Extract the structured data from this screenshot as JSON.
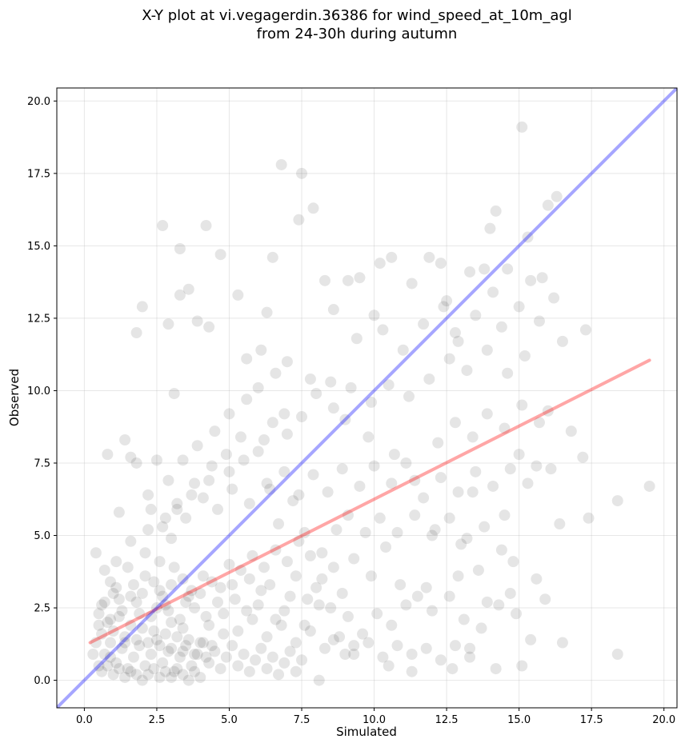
{
  "chart_data": {
    "type": "scatter",
    "title_line1": "X-Y plot at vi.vegagerdin.36386 for wind_speed_at_10m_agl",
    "title_line2": "from 24-30h during autumn",
    "xlabel": "Simulated",
    "ylabel": "Observed",
    "xlim": [
      -0.95,
      20.45
    ],
    "ylim": [
      -0.95,
      20.45
    ],
    "xticks": [
      0.0,
      2.5,
      5.0,
      7.5,
      10.0,
      12.5,
      15.0,
      17.5,
      20.0
    ],
    "yticks": [
      0.0,
      2.5,
      5.0,
      7.5,
      10.0,
      12.5,
      15.0,
      17.5,
      20.0
    ],
    "xtick_labels": [
      "0.0",
      "2.5",
      "5.0",
      "7.5",
      "10.0",
      "12.5",
      "15.0",
      "17.5",
      "20.0"
    ],
    "ytick_labels": [
      "0.0",
      "2.5",
      "5.0",
      "7.5",
      "10.0",
      "12.5",
      "15.0",
      "17.5",
      "20.0"
    ],
    "grid": true,
    "point_color": "#000000",
    "point_opacity": 0.1,
    "identity_line": {
      "x": [
        -0.95,
        20.45
      ],
      "y": [
        -0.95,
        20.45
      ],
      "color": "#0000ff",
      "opacity": 0.35
    },
    "fit_line": {
      "x": [
        0.2,
        19.5
      ],
      "y": [
        1.3,
        11.05
      ],
      "color": "#ff0000",
      "opacity": 0.35
    },
    "points": [
      [
        0.4,
        4.4
      ],
      [
        0.7,
        3.8
      ],
      [
        0.8,
        7.8
      ],
      [
        1.2,
        5.8
      ],
      [
        1.4,
        8.3
      ],
      [
        1.6,
        7.7
      ],
      [
        1.8,
        7.5
      ],
      [
        1.8,
        12.0
      ],
      [
        2.0,
        12.9
      ],
      [
        2.2,
        6.4
      ],
      [
        2.5,
        7.6
      ],
      [
        2.7,
        15.7
      ],
      [
        2.9,
        12.3
      ],
      [
        3.1,
        9.9
      ],
      [
        3.3,
        14.9
      ],
      [
        3.3,
        13.3
      ],
      [
        3.6,
        13.5
      ],
      [
        3.9,
        12.4
      ],
      [
        4.2,
        15.7
      ],
      [
        4.3,
        12.2
      ],
      [
        4.7,
        14.7
      ],
      [
        5.3,
        13.3
      ],
      [
        5.6,
        11.1
      ],
      [
        6.1,
        11.4
      ],
      [
        6.3,
        12.7
      ],
      [
        6.5,
        14.6
      ],
      [
        6.8,
        17.8
      ],
      [
        7.5,
        17.5
      ],
      [
        7.4,
        15.9
      ],
      [
        7.9,
        16.3
      ],
      [
        8.3,
        13.8
      ],
      [
        8.6,
        12.8
      ],
      [
        9.1,
        13.8
      ],
      [
        9.5,
        13.9
      ],
      [
        10.0,
        12.6
      ],
      [
        10.2,
        14.4
      ],
      [
        10.6,
        14.6
      ],
      [
        11.3,
        13.7
      ],
      [
        11.9,
        14.6
      ],
      [
        12.3,
        14.4
      ],
      [
        12.5,
        13.1
      ],
      [
        12.9,
        11.7
      ],
      [
        13.3,
        14.1
      ],
      [
        13.8,
        14.2
      ],
      [
        14.0,
        15.6
      ],
      [
        14.2,
        16.2
      ],
      [
        14.6,
        14.2
      ],
      [
        15.1,
        19.1
      ],
      [
        15.3,
        15.3
      ],
      [
        15.8,
        13.9
      ],
      [
        16.0,
        16.4
      ],
      [
        16.3,
        16.7
      ],
      [
        16.5,
        11.7
      ],
      [
        17.3,
        12.1
      ],
      [
        16.8,
        8.6
      ],
      [
        17.2,
        7.7
      ],
      [
        17.4,
        5.6
      ],
      [
        18.4,
        6.2
      ],
      [
        19.5,
        6.7
      ],
      [
        18.4,
        0.9
      ],
      [
        16.5,
        1.3
      ],
      [
        15.1,
        0.5
      ],
      [
        14.2,
        0.4
      ],
      [
        13.3,
        1.1
      ],
      [
        12.7,
        0.4
      ],
      [
        11.3,
        0.3
      ],
      [
        10.5,
        0.5
      ],
      [
        9.3,
        1.2
      ],
      [
        9.0,
        0.9
      ],
      [
        8.1,
        0.0
      ],
      [
        13.0,
        4.7
      ],
      [
        13.4,
        6.5
      ],
      [
        14.5,
        5.7
      ],
      [
        15.0,
        7.8
      ],
      [
        15.6,
        7.4
      ],
      [
        16.0,
        9.3
      ],
      [
        16.4,
        5.4
      ],
      [
        14.8,
        4.1
      ],
      [
        13.6,
        3.8
      ],
      [
        12.1,
        5.2
      ],
      [
        11.4,
        6.9
      ],
      [
        10.7,
        7.8
      ],
      [
        9.8,
        8.4
      ],
      [
        9.0,
        9.0
      ],
      [
        8.5,
        10.3
      ],
      [
        7.8,
        10.4
      ],
      [
        6.9,
        9.2
      ],
      [
        6.2,
        8.3
      ],
      [
        5.5,
        7.6
      ],
      [
        5.0,
        7.2
      ],
      [
        4.4,
        7.4
      ],
      [
        3.8,
        6.8
      ],
      [
        3.2,
        6.1
      ],
      [
        2.8,
        5.6
      ],
      [
        2.2,
        5.2
      ],
      [
        1.6,
        4.8
      ],
      [
        1.1,
        4.1
      ],
      [
        0.9,
        3.4
      ],
      [
        1.5,
        3.9
      ],
      [
        2.1,
        4.4
      ],
      [
        2.6,
        4.1
      ],
      [
        3.0,
        4.9
      ],
      [
        3.5,
        5.6
      ],
      [
        4.1,
        6.3
      ],
      [
        4.6,
        5.9
      ],
      [
        5.1,
        6.6
      ],
      [
        5.7,
        6.1
      ],
      [
        6.3,
        6.8
      ],
      [
        6.7,
        5.4
      ],
      [
        7.2,
        6.2
      ],
      [
        7.6,
        5.1
      ],
      [
        8.2,
        4.4
      ],
      [
        8.7,
        5.2
      ],
      [
        9.3,
        4.2
      ],
      [
        9.9,
        3.6
      ],
      [
        10.4,
        4.6
      ],
      [
        10.9,
        3.3
      ],
      [
        11.5,
        2.9
      ],
      [
        12.0,
        2.4
      ],
      [
        12.6,
        2.9
      ],
      [
        13.1,
        2.1
      ],
      [
        13.7,
        1.8
      ],
      [
        14.3,
        2.6
      ],
      [
        14.9,
        2.3
      ],
      [
        15.4,
        1.4
      ],
      [
        15.9,
        2.8
      ],
      [
        15.6,
        3.5
      ],
      [
        14.7,
        3.0
      ],
      [
        13.9,
        2.7
      ],
      [
        12.9,
        3.6
      ],
      [
        11.8,
        3.2
      ],
      [
        11.1,
        2.6
      ],
      [
        10.6,
        1.9
      ],
      [
        10.1,
        2.3
      ],
      [
        9.6,
        1.6
      ],
      [
        9.1,
        2.2
      ],
      [
        8.6,
        1.4
      ],
      [
        8.1,
        2.6
      ],
      [
        7.6,
        1.9
      ],
      [
        7.1,
        2.9
      ],
      [
        6.6,
        2.1
      ],
      [
        6.1,
        3.1
      ],
      [
        5.6,
        2.4
      ],
      [
        5.1,
        3.3
      ],
      [
        4.6,
        2.7
      ],
      [
        4.1,
        3.6
      ],
      [
        3.6,
        2.9
      ],
      [
        3.1,
        3.9
      ],
      [
        2.6,
        3.1
      ],
      [
        2.1,
        3.6
      ],
      [
        1.6,
        2.9
      ],
      [
        1.1,
        3.2
      ],
      [
        0.6,
        2.6
      ],
      [
        0.5,
        1.9
      ],
      [
        0.9,
        2.1
      ],
      [
        1.3,
        2.4
      ],
      [
        1.8,
        2.7
      ],
      [
        2.3,
        2.2
      ],
      [
        2.8,
        2.6
      ],
      [
        3.3,
        2.1
      ],
      [
        3.8,
        2.5
      ],
      [
        4.3,
        1.9
      ],
      [
        4.8,
        2.3
      ],
      [
        5.3,
        1.7
      ],
      [
        5.8,
        2.1
      ],
      [
        6.3,
        1.5
      ],
      [
        6.8,
        1.9
      ],
      [
        7.3,
        1.3
      ],
      [
        7.8,
        1.7
      ],
      [
        8.3,
        1.1
      ],
      [
        8.8,
        1.5
      ],
      [
        9.3,
        0.9
      ],
      [
        9.8,
        1.3
      ],
      [
        10.3,
        0.8
      ],
      [
        10.8,
        1.2
      ],
      [
        11.3,
        0.9
      ],
      [
        11.8,
        1.1
      ],
      [
        12.3,
        0.7
      ],
      [
        12.8,
        1.2
      ],
      [
        13.3,
        0.8
      ],
      [
        0.5,
        0.5
      ],
      [
        0.7,
        0.9
      ],
      [
        0.9,
        1.3
      ],
      [
        1.1,
        0.6
      ],
      [
        1.3,
        1.1
      ],
      [
        1.5,
        0.4
      ],
      [
        1.7,
        0.8
      ],
      [
        1.9,
        1.2
      ],
      [
        2.1,
        0.5
      ],
      [
        2.3,
        0.9
      ],
      [
        2.5,
        1.4
      ],
      [
        2.7,
        0.6
      ],
      [
        2.9,
        1.0
      ],
      [
        3.1,
        0.3
      ],
      [
        3.3,
        0.8
      ],
      [
        3.5,
        1.2
      ],
      [
        3.7,
        0.5
      ],
      [
        3.9,
        0.9
      ],
      [
        4.1,
        1.3
      ],
      [
        4.3,
        0.6
      ],
      [
        4.5,
        1.0
      ],
      [
        4.7,
        0.4
      ],
      [
        4.9,
        0.8
      ],
      [
        5.1,
        1.2
      ],
      [
        5.3,
        0.5
      ],
      [
        5.5,
        0.9
      ],
      [
        5.7,
        0.3
      ],
      [
        5.9,
        0.7
      ],
      [
        6.1,
        1.1
      ],
      [
        6.3,
        0.4
      ],
      [
        6.5,
        0.8
      ],
      [
        6.7,
        0.2
      ],
      [
        6.9,
        0.6
      ],
      [
        7.1,
        1.0
      ],
      [
        7.3,
        0.3
      ],
      [
        7.5,
        0.7
      ],
      [
        0.6,
        1.6
      ],
      [
        0.8,
        2.0
      ],
      [
        1.0,
        1.7
      ],
      [
        1.2,
        2.2
      ],
      [
        1.4,
        1.5
      ],
      [
        1.6,
        1.9
      ],
      [
        1.8,
        1.4
      ],
      [
        2.0,
        1.8
      ],
      [
        2.2,
        1.3
      ],
      [
        2.4,
        1.7
      ],
      [
        2.6,
        1.2
      ],
      [
        2.8,
        1.6
      ],
      [
        3.0,
        1.1
      ],
      [
        3.2,
        1.5
      ],
      [
        3.4,
        1.0
      ],
      [
        3.6,
        1.4
      ],
      [
        3.8,
        0.9
      ],
      [
        4.0,
        1.3
      ],
      [
        4.2,
        0.8
      ],
      [
        4.4,
        1.2
      ],
      [
        0.3,
        0.9
      ],
      [
        0.4,
        1.3
      ],
      [
        0.6,
        0.3
      ],
      [
        0.8,
        0.5
      ],
      [
        1.0,
        0.2
      ],
      [
        1.2,
        0.4
      ],
      [
        1.4,
        0.1
      ],
      [
        1.6,
        0.3
      ],
      [
        1.8,
        0.2
      ],
      [
        2.0,
        0.0
      ],
      [
        2.2,
        0.2
      ],
      [
        2.4,
        0.4
      ],
      [
        2.6,
        0.1
      ],
      [
        2.8,
        0.3
      ],
      [
        3.0,
        0.1
      ],
      [
        3.2,
        0.4
      ],
      [
        3.4,
        0.2
      ],
      [
        3.6,
        0.0
      ],
      [
        3.8,
        0.3
      ],
      [
        4.0,
        0.1
      ],
      [
        0.5,
        2.3
      ],
      [
        0.7,
        2.7
      ],
      [
        1.0,
        3.0
      ],
      [
        1.2,
        2.8
      ],
      [
        1.7,
        3.3
      ],
      [
        2.0,
        3.0
      ],
      [
        2.4,
        3.4
      ],
      [
        2.7,
        2.9
      ],
      [
        3.0,
        3.3
      ],
      [
        3.4,
        3.5
      ],
      [
        3.7,
        3.1
      ],
      [
        4.0,
        3.0
      ],
      [
        4.4,
        3.4
      ],
      [
        4.7,
        3.2
      ],
      [
        5.0,
        4.0
      ],
      [
        5.4,
        3.8
      ],
      [
        5.8,
        4.3
      ],
      [
        6.2,
        3.9
      ],
      [
        6.6,
        4.5
      ],
      [
        7.0,
        4.1
      ],
      [
        7.4,
        4.8
      ],
      [
        7.8,
        4.3
      ],
      [
        8.2,
        3.5
      ],
      [
        8.6,
        3.9
      ],
      [
        2.3,
        5.9
      ],
      [
        2.9,
        6.9
      ],
      [
        3.4,
        7.6
      ],
      [
        3.9,
        8.1
      ],
      [
        4.5,
        8.6
      ],
      [
        5.0,
        9.2
      ],
      [
        5.6,
        9.7
      ],
      [
        6.0,
        10.1
      ],
      [
        6.6,
        10.6
      ],
      [
        7.0,
        11.0
      ],
      [
        9.4,
        11.8
      ],
      [
        10.3,
        12.1
      ],
      [
        11.0,
        11.4
      ],
      [
        11.7,
        12.3
      ],
      [
        12.4,
        12.9
      ],
      [
        12.8,
        12.0
      ],
      [
        13.5,
        12.6
      ],
      [
        14.1,
        13.4
      ],
      [
        14.4,
        12.2
      ],
      [
        15.0,
        12.9
      ],
      [
        15.4,
        13.8
      ],
      [
        15.7,
        12.4
      ],
      [
        16.2,
        13.2
      ],
      [
        15.2,
        11.2
      ],
      [
        14.6,
        10.6
      ],
      [
        13.9,
        11.4
      ],
      [
        13.2,
        10.7
      ],
      [
        12.6,
        11.1
      ],
      [
        11.9,
        10.4
      ],
      [
        11.2,
        9.8
      ],
      [
        10.5,
        10.2
      ],
      [
        9.9,
        9.6
      ],
      [
        9.2,
        10.1
      ],
      [
        8.6,
        9.4
      ],
      [
        8.0,
        9.9
      ],
      [
        7.5,
        9.1
      ],
      [
        7.0,
        8.5
      ],
      [
        6.5,
        8.9
      ],
      [
        6.0,
        7.9
      ],
      [
        5.4,
        8.4
      ],
      [
        4.9,
        7.8
      ],
      [
        4.3,
        6.9
      ],
      [
        3.7,
        6.4
      ],
      [
        3.2,
        5.9
      ],
      [
        2.7,
        5.3
      ],
      [
        12.2,
        8.2
      ],
      [
        12.8,
        8.9
      ],
      [
        13.4,
        8.4
      ],
      [
        13.9,
        9.2
      ],
      [
        14.5,
        8.7
      ],
      [
        15.1,
        9.5
      ],
      [
        15.7,
        8.9
      ],
      [
        16.1,
        7.3
      ],
      [
        15.3,
        6.8
      ],
      [
        14.7,
        7.3
      ],
      [
        14.1,
        6.7
      ],
      [
        13.5,
        7.2
      ],
      [
        12.9,
        6.5
      ],
      [
        12.3,
        7.0
      ],
      [
        11.7,
        6.3
      ],
      [
        11.1,
        7.5
      ],
      [
        10.6,
        6.8
      ],
      [
        10.0,
        7.4
      ],
      [
        9.5,
        6.7
      ],
      [
        8.9,
        7.3
      ],
      [
        8.4,
        6.5
      ],
      [
        7.9,
        7.1
      ],
      [
        7.4,
        6.4
      ],
      [
        6.9,
        7.2
      ],
      [
        6.4,
        6.6
      ],
      [
        10.2,
        5.6
      ],
      [
        10.8,
        5.1
      ],
      [
        11.4,
        5.7
      ],
      [
        12.0,
        5.0
      ],
      [
        12.6,
        5.6
      ],
      [
        13.2,
        4.9
      ],
      [
        13.8,
        5.3
      ],
      [
        14.4,
        4.5
      ],
      [
        9.7,
        5.1
      ],
      [
        9.1,
        5.7
      ],
      [
        2.9,
        2.4
      ],
      [
        3.4,
        1.8
      ],
      [
        1.9,
        2.3
      ],
      [
        1.4,
        1.3
      ],
      [
        0.9,
        0.8
      ],
      [
        2.5,
        2.5
      ],
      [
        3.0,
        2.0
      ],
      [
        3.5,
        2.7
      ],
      [
        4.2,
        2.2
      ],
      [
        4.8,
        1.6
      ],
      [
        5.2,
        2.8
      ],
      [
        5.7,
        3.5
      ],
      [
        6.0,
        2.6
      ],
      [
        6.4,
        3.3
      ],
      [
        6.9,
        2.4
      ],
      [
        7.3,
        3.6
      ],
      [
        7.7,
        2.8
      ],
      [
        8.0,
        3.2
      ],
      [
        8.5,
        2.5
      ],
      [
        8.9,
        3.0
      ]
    ]
  }
}
